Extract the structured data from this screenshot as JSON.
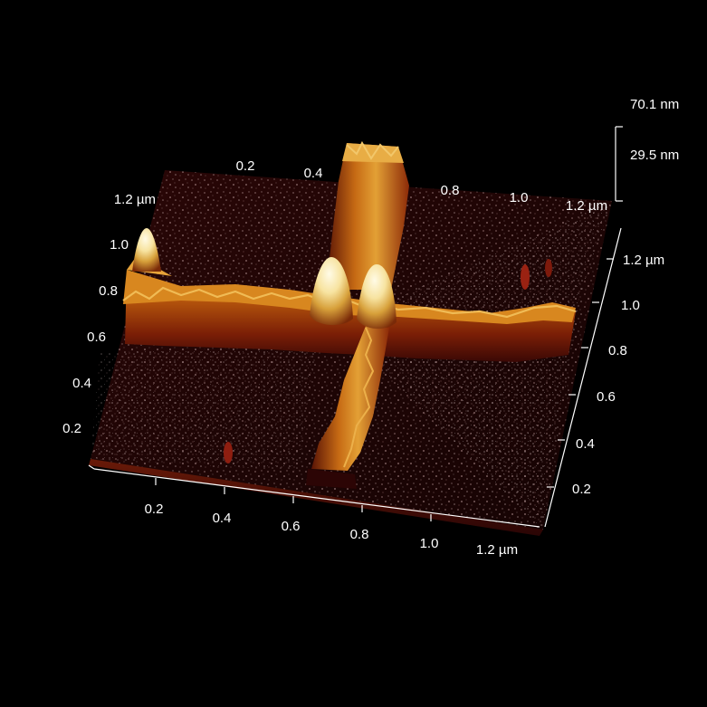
{
  "image": {
    "description_kind": "afm-3d-topography",
    "background_color": "#000000",
    "colormap": [
      "#1a0202",
      "#3a0a05",
      "#6e1b05",
      "#a5400a",
      "#d9821c",
      "#f5c65a",
      "#fff8d8"
    ]
  },
  "axes": {
    "front_x": {
      "ticks": [
        "0.2",
        "0.4",
        "0.6",
        "0.8",
        "1.0",
        "1.2 µm"
      ]
    },
    "right_y": {
      "ticks": [
        "0.2",
        "0.4",
        "0.6",
        "0.8",
        "1.0",
        "1.2 µm"
      ]
    },
    "left_y": {
      "ticks": [
        "0.2",
        "0.4",
        "0.6",
        "0.8",
        "1.0",
        "1.2 µm"
      ]
    },
    "back_x": {
      "ticks": [
        "0.2",
        "0.4",
        "0.8",
        "1.0",
        "1.2 µm"
      ]
    },
    "z": {
      "ticks": [
        "70.1 nm",
        "29.5 nm"
      ]
    }
  }
}
